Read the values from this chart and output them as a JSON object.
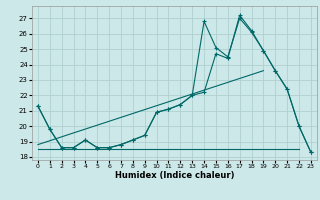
{
  "xlabel": "Humidex (Indice chaleur)",
  "bg_color": "#cce8e8",
  "grid_color": "#b0d0d0",
  "line_color": "#006868",
  "xlim": [
    -0.5,
    23.5
  ],
  "ylim": [
    17.8,
    27.8
  ],
  "yticks": [
    18,
    19,
    20,
    21,
    22,
    23,
    24,
    25,
    26,
    27
  ],
  "xticks": [
    0,
    1,
    2,
    3,
    4,
    5,
    6,
    7,
    8,
    9,
    10,
    11,
    12,
    13,
    14,
    15,
    16,
    17,
    18,
    19,
    20,
    21,
    22,
    23
  ],
  "series_main1": {
    "x": [
      0,
      1,
      2,
      3,
      4,
      5,
      6,
      7,
      8,
      9,
      10,
      11,
      12,
      13,
      14,
      15,
      16,
      17,
      18,
      19,
      20,
      21,
      22,
      23
    ],
    "y": [
      21.3,
      19.8,
      18.6,
      18.6,
      19.1,
      18.6,
      18.6,
      18.8,
      19.1,
      19.4,
      20.9,
      21.1,
      21.4,
      22.0,
      22.2,
      24.7,
      24.4,
      27.2,
      26.2,
      24.9,
      23.6,
      22.4,
      20.0,
      18.3
    ]
  },
  "series_main2": {
    "x": [
      0,
      1,
      2,
      3,
      4,
      5,
      6,
      7,
      8,
      9,
      10,
      11,
      12,
      13,
      14,
      15,
      16,
      17,
      18,
      19,
      20,
      21,
      22,
      23
    ],
    "y": [
      21.3,
      19.8,
      18.6,
      18.6,
      19.1,
      18.6,
      18.6,
      18.8,
      19.1,
      19.4,
      20.9,
      21.1,
      21.4,
      22.0,
      26.8,
      25.1,
      24.5,
      27.0,
      26.1,
      24.9,
      23.6,
      22.4,
      20.0,
      18.3
    ]
  },
  "series_linear": {
    "x": [
      0,
      19
    ],
    "y": [
      18.8,
      23.6
    ]
  },
  "series_flat": {
    "x": [
      0,
      22
    ],
    "y": [
      18.5,
      18.5
    ]
  }
}
